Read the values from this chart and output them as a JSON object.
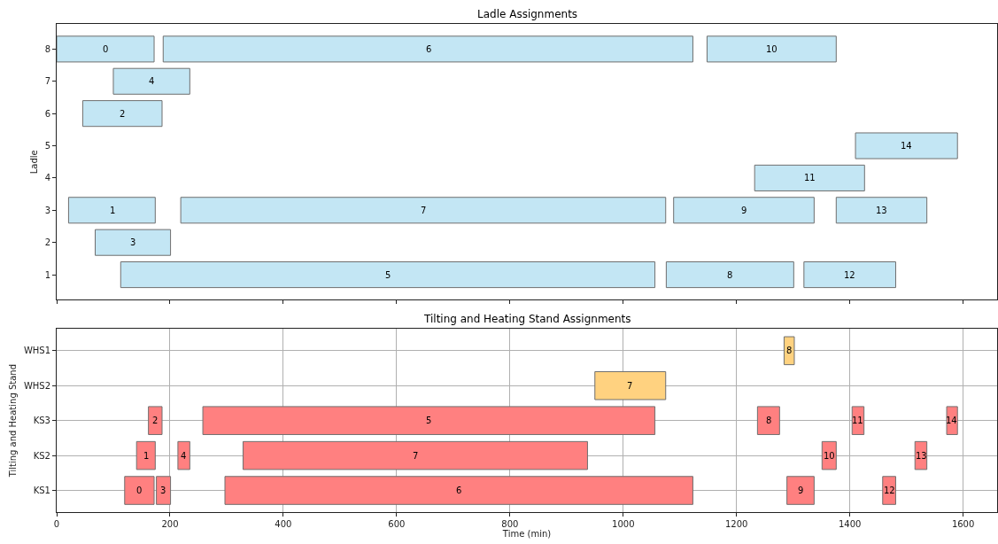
{
  "chart_data": [
    {
      "type": "bar",
      "orientation": "horizontal",
      "title": "Ladle Assignments",
      "ylabel": "Ladle",
      "categories": [
        "8",
        "7",
        "6",
        "5",
        "4",
        "3",
        "2",
        "1"
      ],
      "series": [
        {
          "color": "#c3e6f4",
          "base": [
            0,
            100,
            46,
            1410,
            1232,
            21,
            68,
            113
          ],
          "values": [
            172,
            135,
            140,
            180,
            194,
            153,
            133,
            943
          ]
        },
        {
          "color": "#c3e6f4",
          "base": [
            188,
            null,
            null,
            null,
            null,
            219,
            null,
            1076
          ],
          "values": [
            935,
            null,
            null,
            null,
            null,
            856,
            null,
            225
          ]
        },
        {
          "color": "#c3e6f4",
          "base": [
            1148,
            null,
            null,
            null,
            null,
            1089,
            null,
            1319
          ],
          "values": [
            228,
            null,
            null,
            null,
            null,
            248,
            null,
            162
          ]
        },
        {
          "color": "#c3e6f4",
          "base": [
            null,
            null,
            null,
            null,
            null,
            1376,
            null,
            null
          ],
          "values": [
            null,
            null,
            null,
            null,
            null,
            160,
            null,
            null
          ]
        }
      ],
      "annotations": [
        {
          "text": "0",
          "x": 86,
          "y": "8"
        },
        {
          "text": "6",
          "x": 656,
          "y": "8"
        },
        {
          "text": "10",
          "x": 1262,
          "y": "8"
        },
        {
          "text": "4",
          "x": 168,
          "y": "7"
        },
        {
          "text": "2",
          "x": 116,
          "y": "6"
        },
        {
          "text": "14",
          "x": 1500,
          "y": "5"
        },
        {
          "text": "11",
          "x": 1329,
          "y": "4"
        },
        {
          "text": "1",
          "x": 98,
          "y": "3"
        },
        {
          "text": "7",
          "x": 647,
          "y": "3"
        },
        {
          "text": "9",
          "x": 1213,
          "y": "3"
        },
        {
          "text": "13",
          "x": 1456,
          "y": "3"
        },
        {
          "text": "3",
          "x": 134,
          "y": "2"
        },
        {
          "text": "5",
          "x": 584,
          "y": "1"
        },
        {
          "text": "8",
          "x": 1188,
          "y": "1"
        },
        {
          "text": "12",
          "x": 1400,
          "y": "1"
        }
      ],
      "xlim": [
        0,
        1660
      ],
      "xticks": [
        0,
        200,
        400,
        600,
        800,
        1000,
        1200,
        1400,
        1600
      ],
      "tick_labels": "y",
      "grid": false
    },
    {
      "type": "bar",
      "orientation": "horizontal",
      "title": "Tilting and Heating Stand Assignments",
      "xlabel": "Time (min)",
      "ylabel": "Tilting and Heating Stand",
      "categories": [
        "WHS1",
        "WHS2",
        "KS3",
        "KS2",
        "KS1"
      ],
      "series": [
        {
          "color": "#ff8080",
          "base": [
            null,
            null,
            162,
            141,
            120
          ],
          "values": [
            null,
            null,
            24,
            33,
            52
          ]
        },
        {
          "color": "#ff8080",
          "base": [
            null,
            null,
            258,
            214,
            176
          ],
          "values": [
            null,
            null,
            798,
            21,
            25
          ]
        },
        {
          "color": "#ff8080",
          "base": [
            null,
            null,
            1237,
            329,
            297
          ],
          "values": [
            null,
            null,
            39,
            608,
            826
          ]
        },
        {
          "color": "#ff8080",
          "base": [
            null,
            null,
            1404,
            1351,
            1289
          ],
          "values": [
            null,
            null,
            21,
            25,
            48
          ]
        },
        {
          "color": "#ff8080",
          "base": [
            null,
            null,
            1571,
            1515,
            1458
          ],
          "values": [
            null,
            null,
            19,
            21,
            23
          ]
        },
        {
          "color": "#ffd280",
          "base": [
            1284,
            950,
            null,
            null,
            null
          ],
          "values": [
            18,
            125,
            null,
            null,
            null
          ]
        }
      ],
      "annotations": [
        {
          "text": "8",
          "x": 1293,
          "y": "WHS1"
        },
        {
          "text": "7",
          "x": 1012,
          "y": "WHS2"
        },
        {
          "text": "2",
          "x": 174,
          "y": "KS3"
        },
        {
          "text": "5",
          "x": 657,
          "y": "KS3"
        },
        {
          "text": "8",
          "x": 1256,
          "y": "KS3"
        },
        {
          "text": "11",
          "x": 1414,
          "y": "KS3"
        },
        {
          "text": "14",
          "x": 1580,
          "y": "KS3"
        },
        {
          "text": "1",
          "x": 158,
          "y": "KS2"
        },
        {
          "text": "4",
          "x": 224,
          "y": "KS2"
        },
        {
          "text": "7",
          "x": 633,
          "y": "KS2"
        },
        {
          "text": "10",
          "x": 1364,
          "y": "KS2"
        },
        {
          "text": "13",
          "x": 1526,
          "y": "KS2"
        },
        {
          "text": "0",
          "x": 146,
          "y": "KS1"
        },
        {
          "text": "3",
          "x": 188,
          "y": "KS1"
        },
        {
          "text": "6",
          "x": 710,
          "y": "KS1"
        },
        {
          "text": "9",
          "x": 1313,
          "y": "KS1"
        },
        {
          "text": "12",
          "x": 1470,
          "y": "KS1"
        }
      ],
      "xlim": [
        0,
        1660
      ],
      "xticks": [
        0,
        200,
        400,
        600,
        800,
        1000,
        1200,
        1400,
        1600
      ],
      "grid": true
    }
  ]
}
